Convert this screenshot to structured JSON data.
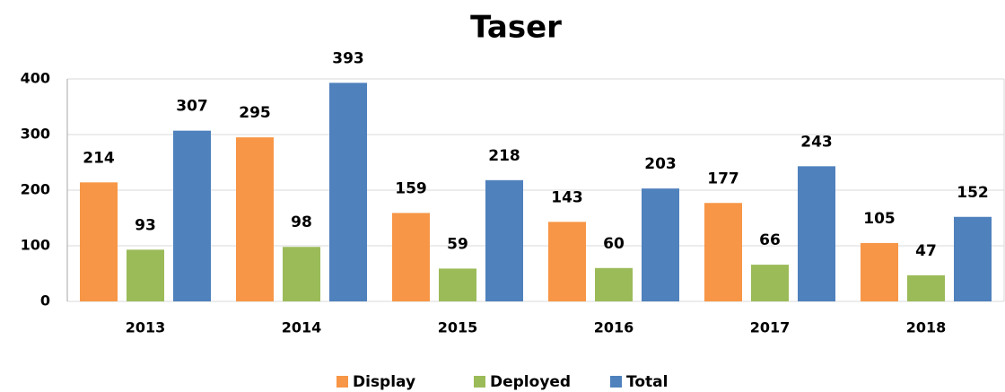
{
  "chart_data": {
    "type": "bar",
    "title": "Taser",
    "categories": [
      "2013",
      "2014",
      "2015",
      "2016",
      "2017",
      "2018"
    ],
    "series": [
      {
        "name": "Display",
        "color": "#f79646",
        "values": [
          214,
          295,
          159,
          143,
          177,
          105
        ]
      },
      {
        "name": "Deployed",
        "color": "#9bbb59",
        "values": [
          93,
          98,
          59,
          60,
          66,
          47
        ]
      },
      {
        "name": "Total",
        "color": "#4f81bd",
        "values": [
          307,
          393,
          218,
          203,
          243,
          152
        ]
      }
    ],
    "ylim": [
      0,
      400
    ],
    "yticks": [
      0,
      100,
      200,
      300,
      400
    ],
    "grid": true,
    "legend": "bottom"
  }
}
